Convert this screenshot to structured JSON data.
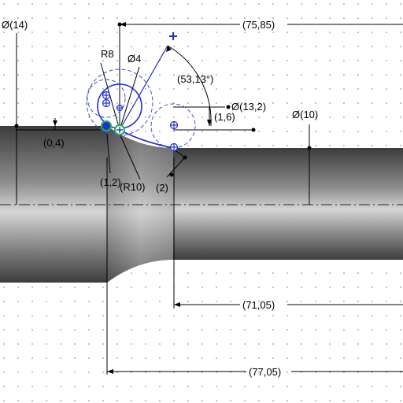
{
  "app": {
    "view": "sketch-profile"
  },
  "colors": {
    "background": "#ffffff",
    "grid_dot": "#7a7a7a",
    "dimension": "#000000",
    "sketch_blue": "#1f2fd6",
    "construction_blue": "#3f51c9",
    "relation_green": "#22b14c",
    "part_dark": "#3a3a3a",
    "part_light": "#d2d2d2"
  },
  "dimensions": {
    "dia_14": "Ø(14)",
    "dia_10": "Ø(10)",
    "dia_13_2": "Ø(13,2)",
    "dia_4": "Ø4",
    "radius_8": "R8",
    "radius_10": "(R10)",
    "angle": "(53,13°)",
    "len_75_85": "(75,85)",
    "len_71_05": "(71,05)",
    "len_77_05": "(77,05)",
    "offset_0_4": "(0,4)",
    "offset_1_2": "(1,2)",
    "offset_1_6": "(1,6)",
    "offset_2": "(2)"
  },
  "icons": {
    "origin_marker": "plus-marker-icon",
    "coincident_relation": "coincident-icon",
    "sketch_point": "sketch-point-icon"
  }
}
